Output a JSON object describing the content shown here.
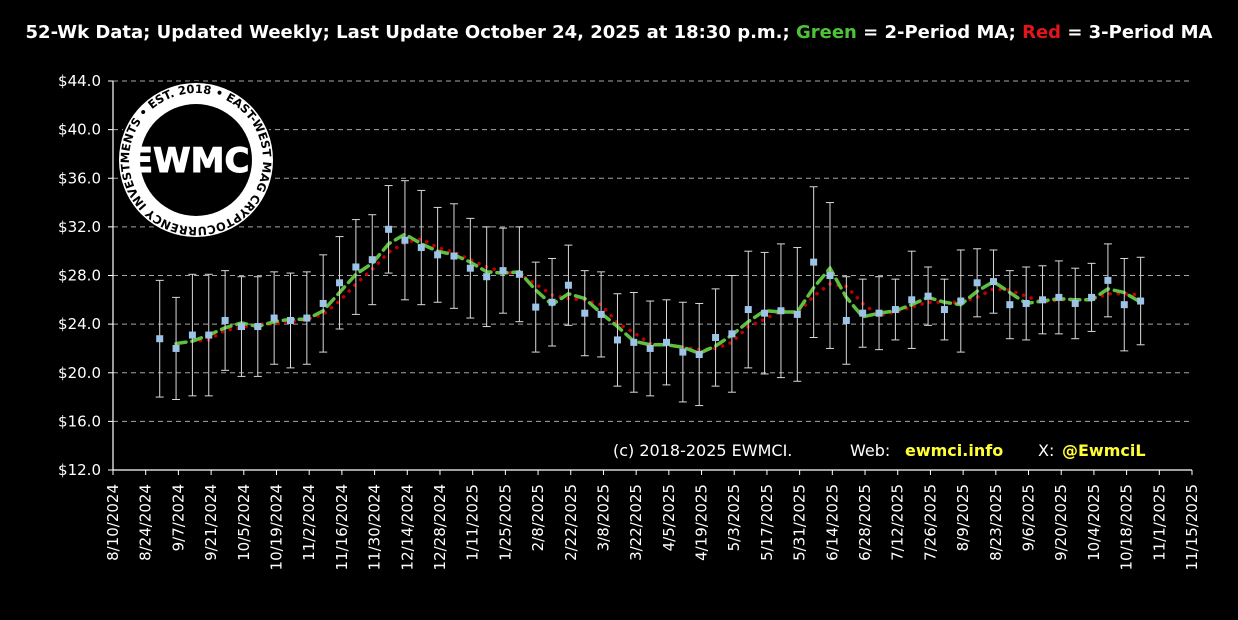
{
  "chart_data": {
    "type": "errorbar-line",
    "title": [
      {
        "text": "52-Wk Data; Updated Weekly; Last Update October 24, 2025 at 18:30 p.m.; ",
        "color": "#ffffff"
      },
      {
        "text": "Green",
        "color": "#4ec23a"
      },
      {
        "text": " = 2-Period MA; ",
        "color": "#ffffff"
      },
      {
        "text": "Red",
        "color": "#e0161b"
      },
      {
        "text": " = 3-Period MA",
        "color": "#ffffff"
      }
    ],
    "credit": [
      {
        "text": "(c) 2018-2025 EWMCI.",
        "color": "#ffffff"
      },
      {
        "text": "Web:",
        "color": "#ffffff"
      },
      {
        "text": "ewmci.info",
        "color": "#ffff33"
      },
      {
        "text": "X:",
        "color": "#ffffff"
      },
      {
        "text": "@EwmciL",
        "color": "#ffff33"
      }
    ],
    "logo": {
      "name": "EWMCI",
      "ring": "CRYPTOCURRENCY INVESTMENTS • EST. 2018 • EAST-WEST MAGNATE •"
    },
    "x": [
      "8/30/2024",
      "9/6/2024",
      "9/13/2024",
      "9/20/2024",
      "9/27/2024",
      "10/4/2024",
      "10/11/2024",
      "10/18/2024",
      "10/25/2024",
      "11/1/2024",
      "11/8/2024",
      "11/15/2024",
      "11/22/2024",
      "11/29/2024",
      "12/6/2024",
      "12/13/2024",
      "12/20/2024",
      "12/27/2024",
      "1/3/2025",
      "1/10/2025",
      "1/17/2025",
      "1/24/2025",
      "1/31/2025",
      "2/7/2025",
      "2/14/2025",
      "2/21/2025",
      "2/28/2025",
      "3/7/2025",
      "3/14/2025",
      "3/21/2025",
      "3/28/2025",
      "4/4/2025",
      "4/11/2025",
      "4/18/2025",
      "4/25/2025",
      "5/2/2025",
      "5/9/2025",
      "5/16/2025",
      "5/23/2025",
      "5/30/2025",
      "6/6/2025",
      "6/13/2025",
      "6/20/2025",
      "6/27/2025",
      "7/4/2025",
      "7/11/2025",
      "7/18/2025",
      "7/25/2025",
      "8/1/2025",
      "8/8/2025",
      "8/15/2025",
      "8/22/2025",
      "8/29/2025",
      "9/5/2025",
      "9/12/2025",
      "9/19/2025",
      "9/26/2025",
      "10/3/2025",
      "10/10/2025",
      "10/17/2025",
      "10/24/2025"
    ],
    "series": [
      {
        "kind": "points",
        "color": "#9dc3e6",
        "error_color": "#d9d9d9",
        "values": [
          22.8,
          22.0,
          23.1,
          23.1,
          24.3,
          23.8,
          23.8,
          24.5,
          24.3,
          24.5,
          25.7,
          27.4,
          28.7,
          29.3,
          31.8,
          30.9,
          30.3,
          29.7,
          29.6,
          28.6,
          27.9,
          28.4,
          28.1,
          25.4,
          25.8,
          27.2,
          24.9,
          24.8,
          22.7,
          22.5,
          22.0,
          22.5,
          21.7,
          21.5,
          22.9,
          23.2,
          25.2,
          24.9,
          25.1,
          24.8,
          29.1,
          28.0,
          24.3,
          24.9,
          24.9,
          25.2,
          26.0,
          26.3,
          25.2,
          25.9,
          27.4,
          27.5,
          25.6,
          25.7,
          26.0,
          26.2,
          25.7,
          26.2,
          27.6,
          25.6,
          25.9
        ],
        "errors": [
          4.8,
          4.2,
          5.0,
          5.0,
          4.1,
          4.1,
          4.1,
          3.8,
          3.9,
          3.8,
          4.0,
          3.8,
          3.9,
          3.7,
          3.6,
          4.9,
          4.7,
          3.9,
          4.3,
          4.1,
          4.1,
          3.5,
          3.9,
          3.7,
          3.6,
          3.3,
          3.5,
          3.5,
          3.8,
          4.1,
          3.9,
          3.5,
          4.1,
          4.2,
          4.0,
          4.8,
          4.8,
          5.0,
          5.5,
          5.5,
          6.2,
          6.0,
          3.6,
          2.8,
          3.0,
          2.5,
          4.0,
          2.4,
          2.5,
          4.2,
          2.8,
          2.6,
          2.8,
          3.0,
          2.8,
          3.0,
          2.9,
          2.8,
          3.0,
          3.8,
          3.6
        ]
      },
      {
        "kind": "line",
        "color": "#5fbf3f",
        "dash": "10 6",
        "values": [
          null,
          22.4,
          22.6,
          23.1,
          23.7,
          24.1,
          23.8,
          24.2,
          24.4,
          24.4,
          25.1,
          26.6,
          28.1,
          29.0,
          30.6,
          31.4,
          30.6,
          30.0,
          29.7,
          29.1,
          28.3,
          28.2,
          28.3,
          26.8,
          25.6,
          26.5,
          26.1,
          24.9,
          23.8,
          22.6,
          22.3,
          22.3,
          22.1,
          21.6,
          22.2,
          23.1,
          24.2,
          25.1,
          25.0,
          25.0,
          27.0,
          28.6,
          26.2,
          24.6,
          24.9,
          25.1,
          25.6,
          26.2,
          25.8,
          25.6,
          26.7,
          27.5,
          26.6,
          25.7,
          25.9,
          26.1,
          26.0,
          26.0,
          26.9,
          26.6,
          25.8
        ]
      },
      {
        "kind": "line",
        "color": "#c00000",
        "dash": "0.1 8",
        "values": [
          null,
          null,
          22.6,
          22.7,
          23.5,
          23.7,
          24.0,
          24.0,
          24.2,
          24.4,
          24.8,
          25.9,
          27.3,
          28.5,
          29.9,
          30.7,
          31.0,
          30.3,
          29.9,
          29.3,
          28.7,
          28.3,
          28.1,
          27.3,
          26.4,
          26.1,
          26.0,
          25.6,
          24.1,
          23.3,
          22.4,
          22.3,
          22.1,
          21.9,
          22.0,
          22.5,
          23.8,
          24.4,
          25.1,
          24.9,
          26.3,
          27.3,
          27.1,
          25.7,
          24.7,
          25.0,
          25.4,
          25.8,
          25.8,
          25.8,
          26.2,
          26.9,
          26.8,
          26.3,
          25.8,
          26.0,
          26.0,
          26.0,
          26.5,
          26.5,
          26.4
        ]
      }
    ],
    "xlim": [
      "8/10/2024",
      "11/15/2025"
    ],
    "xticks": [
      "8/10/2024",
      "8/24/2024",
      "9/7/2024",
      "9/21/2024",
      "10/5/2024",
      "10/19/2024",
      "11/2/2024",
      "11/16/2024",
      "11/30/2024",
      "12/14/2024",
      "12/28/2024",
      "1/11/2025",
      "1/25/2025",
      "2/8/2025",
      "2/22/2025",
      "3/8/2025",
      "3/22/2025",
      "4/5/2025",
      "4/19/2025",
      "5/3/2025",
      "5/17/2025",
      "5/31/2025",
      "6/14/2025",
      "6/28/2025",
      "7/12/2025",
      "7/26/2025",
      "8/9/2025",
      "8/23/2025",
      "9/6/2025",
      "9/20/2025",
      "10/4/2025",
      "10/18/2025",
      "11/1/2025",
      "11/15/2025"
    ],
    "ylim": [
      12,
      44
    ],
    "yticks": [
      {
        "value": 12,
        "label": "$12.0"
      },
      {
        "value": 16,
        "label": "$16.0"
      },
      {
        "value": 20,
        "label": "$20.0"
      },
      {
        "value": 24,
        "label": "$24.0"
      },
      {
        "value": 28,
        "label": "$28.0"
      },
      {
        "value": 32,
        "label": "$32.0"
      },
      {
        "value": 36,
        "label": "$36.0"
      },
      {
        "value": 40,
        "label": "$40.0"
      },
      {
        "value": 44,
        "label": "$44.0"
      }
    ],
    "grid": true,
    "grid_color": "#a6a6a6"
  }
}
